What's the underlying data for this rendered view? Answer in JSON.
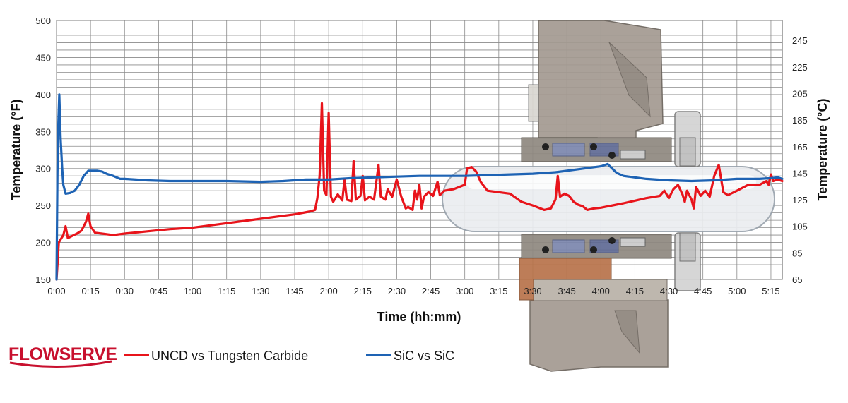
{
  "brand": {
    "name": "FLOWSERVE",
    "color": "#c8102e"
  },
  "chart_data": {
    "type": "line",
    "xlabel": "Time (hh:mm)",
    "ylabel_left": "Temperature (°F)",
    "ylabel_right": "Temperature (°C)",
    "x_unit": "minutes",
    "xlim": [
      0,
      320
    ],
    "ylim": [
      150,
      500
    ],
    "ylim_right": [
      65,
      260
    ],
    "grid": true,
    "legend_position": "bottom-left",
    "x_ticks": [
      "0:00",
      "0:15",
      "0:30",
      "0:45",
      "1:00",
      "1:15",
      "1:30",
      "1:45",
      "2:00",
      "2:15",
      "2:30",
      "2:45",
      "3:00",
      "3:15",
      "3:30",
      "3:45",
      "4:00",
      "4:15",
      "4:30",
      "4:45",
      "5:00",
      "5:15"
    ],
    "y_ticks": [
      "150",
      "200",
      "250",
      "300",
      "350",
      "400",
      "450",
      "500"
    ],
    "y_ticks_right": [
      "65",
      "85",
      "105",
      "125",
      "145",
      "165",
      "185",
      "205",
      "225",
      "245"
    ],
    "series": [
      {
        "name": "UNCD vs Tungsten Carbide",
        "color": "#e8141b",
        "points": [
          [
            0,
            150
          ],
          [
            0.4,
            170
          ],
          [
            1,
            200
          ],
          [
            2,
            205
          ],
          [
            3,
            210
          ],
          [
            4,
            222
          ],
          [
            5,
            206
          ],
          [
            7,
            209
          ],
          [
            9,
            212
          ],
          [
            11,
            216
          ],
          [
            13,
            228
          ],
          [
            14,
            239
          ],
          [
            15,
            222
          ],
          [
            17,
            213
          ],
          [
            20,
            212
          ],
          [
            25,
            210
          ],
          [
            30,
            212
          ],
          [
            40,
            215
          ],
          [
            50,
            218
          ],
          [
            60,
            220
          ],
          [
            75,
            226
          ],
          [
            90,
            232
          ],
          [
            105,
            238
          ],
          [
            112,
            242
          ],
          [
            114,
            244
          ],
          [
            115,
            260
          ],
          [
            116,
            290
          ],
          [
            117,
            388
          ],
          [
            118,
            270
          ],
          [
            119,
            264
          ],
          [
            120,
            375
          ],
          [
            121,
            262
          ],
          [
            122,
            255
          ],
          [
            124,
            265
          ],
          [
            126,
            257
          ],
          [
            127,
            285
          ],
          [
            128,
            258
          ],
          [
            130,
            256
          ],
          [
            131,
            310
          ],
          [
            132,
            258
          ],
          [
            134,
            263
          ],
          [
            135,
            290
          ],
          [
            136,
            257
          ],
          [
            138,
            262
          ],
          [
            140,
            258
          ],
          [
            142,
            305
          ],
          [
            143,
            262
          ],
          [
            145,
            258
          ],
          [
            146,
            272
          ],
          [
            148,
            262
          ],
          [
            150,
            285
          ],
          [
            152,
            262
          ],
          [
            154,
            246
          ],
          [
            155,
            248
          ],
          [
            157,
            244
          ],
          [
            158,
            270
          ],
          [
            159,
            258
          ],
          [
            160,
            278
          ],
          [
            161,
            246
          ],
          [
            162,
            262
          ],
          [
            164,
            268
          ],
          [
            166,
            263
          ],
          [
            168,
            282
          ],
          [
            169,
            264
          ],
          [
            171,
            270
          ],
          [
            175,
            272
          ],
          [
            180,
            278
          ],
          [
            181,
            300
          ],
          [
            183,
            302
          ],
          [
            185,
            296
          ],
          [
            187,
            282
          ],
          [
            190,
            270
          ],
          [
            200,
            266
          ],
          [
            205,
            255
          ],
          [
            210,
            250
          ],
          [
            215,
            244
          ],
          [
            218,
            246
          ],
          [
            220,
            258
          ],
          [
            221,
            290
          ],
          [
            222,
            262
          ],
          [
            224,
            266
          ],
          [
            226,
            263
          ],
          [
            228,
            255
          ],
          [
            230,
            251
          ],
          [
            232,
            249
          ],
          [
            234,
            244
          ],
          [
            237,
            246
          ],
          [
            240,
            247
          ],
          [
            250,
            253
          ],
          [
            260,
            260
          ],
          [
            266,
            263
          ],
          [
            268,
            270
          ],
          [
            270,
            260
          ],
          [
            272,
            272
          ],
          [
            274,
            278
          ],
          [
            276,
            265
          ],
          [
            277,
            255
          ],
          [
            278,
            270
          ],
          [
            280,
            258
          ],
          [
            281,
            246
          ],
          [
            282,
            275
          ],
          [
            284,
            263
          ],
          [
            286,
            270
          ],
          [
            288,
            262
          ],
          [
            290,
            290
          ],
          [
            292,
            305
          ],
          [
            294,
            268
          ],
          [
            296,
            264
          ],
          [
            300,
            270
          ],
          [
            305,
            278
          ],
          [
            310,
            278
          ],
          [
            313,
            283
          ],
          [
            314,
            278
          ],
          [
            315,
            292
          ],
          [
            316,
            283
          ],
          [
            318,
            285
          ],
          [
            320,
            283
          ]
        ]
      },
      {
        "name": "SiC vs SiC",
        "color": "#1e63b4",
        "points": [
          [
            0,
            150
          ],
          [
            0.4,
            295
          ],
          [
            0.8,
            360
          ],
          [
            1.2,
            400
          ],
          [
            1.8,
            340
          ],
          [
            2.5,
            300
          ],
          [
            3,
            278
          ],
          [
            4,
            266
          ],
          [
            6,
            267
          ],
          [
            8,
            270
          ],
          [
            10,
            278
          ],
          [
            12,
            290
          ],
          [
            14,
            297
          ],
          [
            18,
            297
          ],
          [
            20,
            296
          ],
          [
            22,
            293
          ],
          [
            25,
            290
          ],
          [
            28,
            286
          ],
          [
            30,
            286
          ],
          [
            35,
            285
          ],
          [
            40,
            284
          ],
          [
            50,
            283
          ],
          [
            60,
            283
          ],
          [
            75,
            283
          ],
          [
            90,
            282
          ],
          [
            100,
            283
          ],
          [
            110,
            285
          ],
          [
            120,
            285
          ],
          [
            130,
            287
          ],
          [
            140,
            288
          ],
          [
            150,
            289
          ],
          [
            160,
            290
          ],
          [
            170,
            290
          ],
          [
            180,
            290
          ],
          [
            190,
            291
          ],
          [
            200,
            292
          ],
          [
            210,
            293
          ],
          [
            220,
            295
          ],
          [
            230,
            299
          ],
          [
            235,
            301
          ],
          [
            240,
            303
          ],
          [
            243,
            306
          ],
          [
            245,
            300
          ],
          [
            247,
            294
          ],
          [
            250,
            290
          ],
          [
            255,
            288
          ],
          [
            260,
            286
          ],
          [
            270,
            284
          ],
          [
            280,
            283
          ],
          [
            290,
            284
          ],
          [
            300,
            286
          ],
          [
            310,
            286
          ],
          [
            315,
            287
          ],
          [
            318,
            288
          ],
          [
            320,
            286
          ]
        ]
      }
    ]
  }
}
